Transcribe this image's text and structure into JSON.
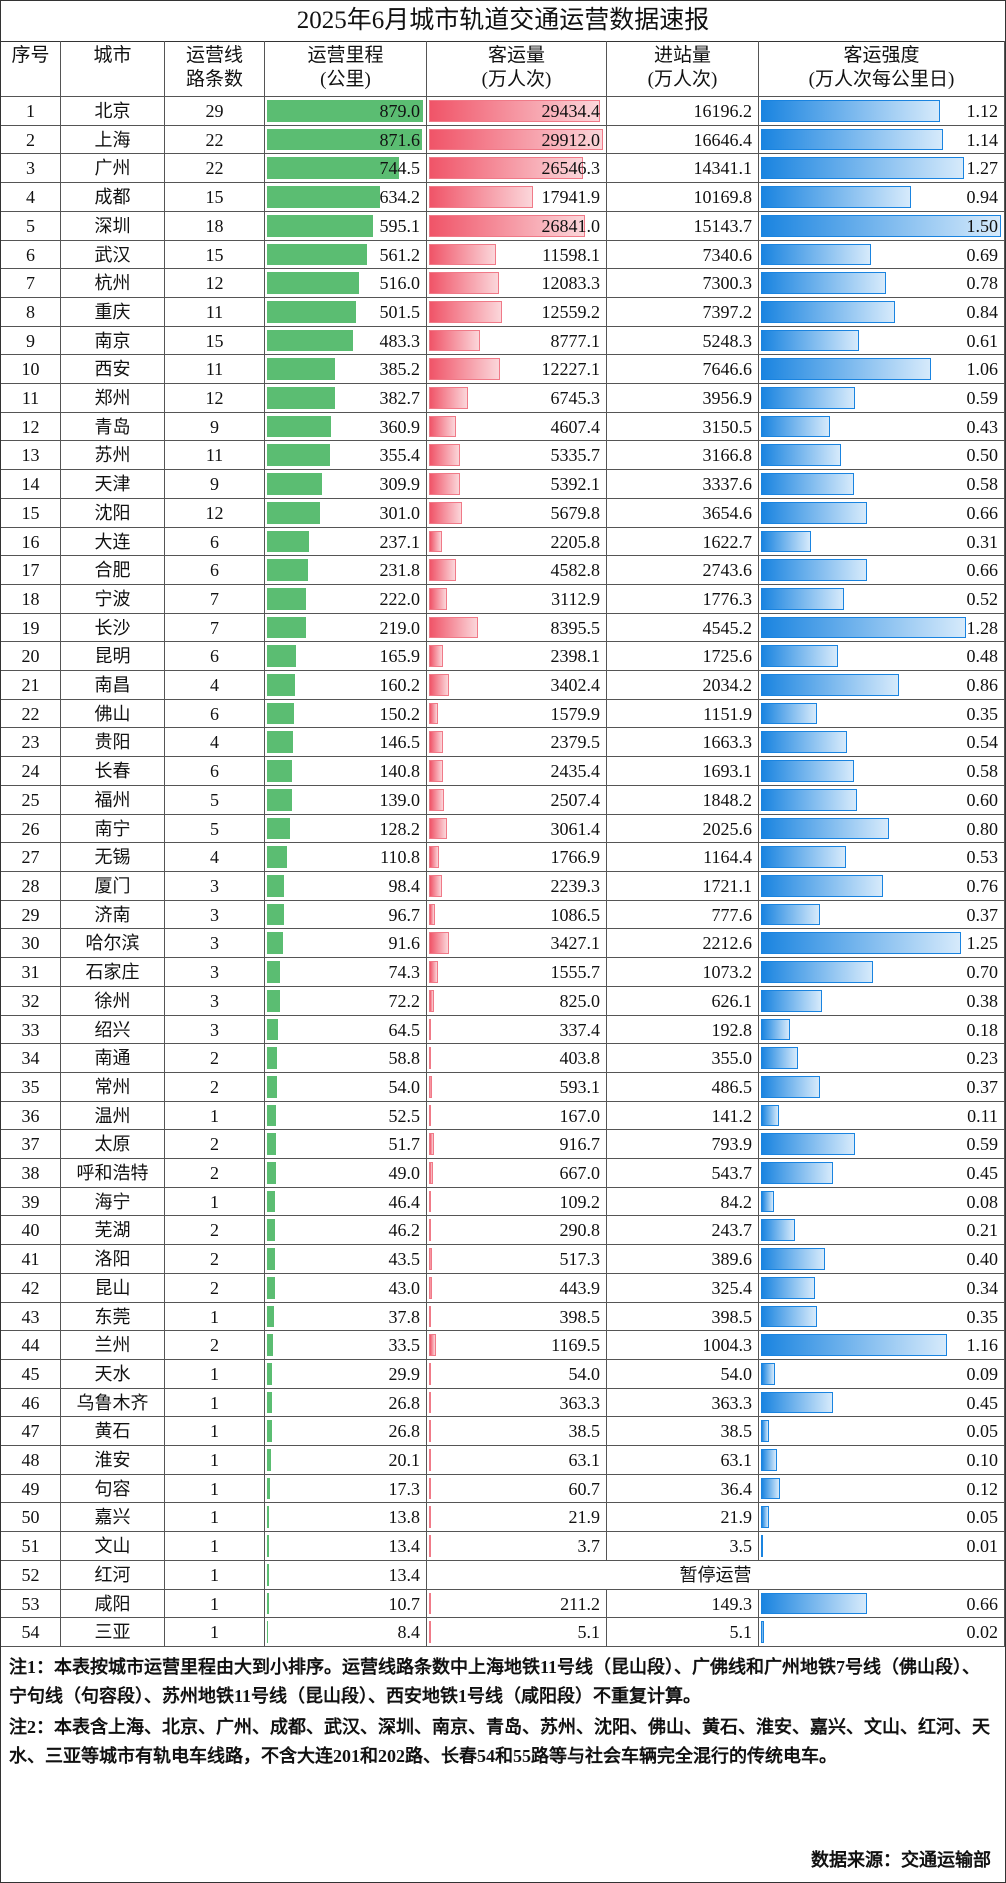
{
  "title": "2025年6月城市轨道交通运营数据速报",
  "table": {
    "headers": [
      "序号",
      "城市",
      "运营线\n路条数",
      "运营里程\n(公里)",
      "客运量\n(万人次)",
      "进站量\n(万人次)",
      "客运强度\n(万人次每公里日)"
    ],
    "rows": [
      [
        1,
        "北京",
        29,
        "879.0",
        "29434.4",
        "16196.2",
        "1.12"
      ],
      [
        2,
        "上海",
        22,
        "871.6",
        "29912.0",
        "16646.4",
        "1.14"
      ],
      [
        3,
        "广州",
        22,
        "744.5",
        "26546.3",
        "14341.1",
        "1.27"
      ],
      [
        4,
        "成都",
        15,
        "634.2",
        "17941.9",
        "10169.8",
        "0.94"
      ],
      [
        5,
        "深圳",
        18,
        "595.1",
        "26841.0",
        "15143.7",
        "1.50"
      ],
      [
        6,
        "武汉",
        15,
        "561.2",
        "11598.1",
        "7340.6",
        "0.69"
      ],
      [
        7,
        "杭州",
        12,
        "516.0",
        "12083.3",
        "7300.3",
        "0.78"
      ],
      [
        8,
        "重庆",
        11,
        "501.5",
        "12559.2",
        "7397.2",
        "0.84"
      ],
      [
        9,
        "南京",
        15,
        "483.3",
        "8777.1",
        "5248.3",
        "0.61"
      ],
      [
        10,
        "西安",
        11,
        "385.2",
        "12227.1",
        "7646.6",
        "1.06"
      ],
      [
        11,
        "郑州",
        12,
        "382.7",
        "6745.3",
        "3956.9",
        "0.59"
      ],
      [
        12,
        "青岛",
        9,
        "360.9",
        "4607.4",
        "3150.5",
        "0.43"
      ],
      [
        13,
        "苏州",
        11,
        "355.4",
        "5335.7",
        "3166.8",
        "0.50"
      ],
      [
        14,
        "天津",
        9,
        "309.9",
        "5392.1",
        "3337.6",
        "0.58"
      ],
      [
        15,
        "沈阳",
        12,
        "301.0",
        "5679.8",
        "3654.6",
        "0.66"
      ],
      [
        16,
        "大连",
        6,
        "237.1",
        "2205.8",
        "1622.7",
        "0.31"
      ],
      [
        17,
        "合肥",
        6,
        "231.8",
        "4582.8",
        "2743.6",
        "0.66"
      ],
      [
        18,
        "宁波",
        7,
        "222.0",
        "3112.9",
        "1776.3",
        "0.52"
      ],
      [
        19,
        "长沙",
        7,
        "219.0",
        "8395.5",
        "4545.2",
        "1.28"
      ],
      [
        20,
        "昆明",
        6,
        "165.9",
        "2398.1",
        "1725.6",
        "0.48"
      ],
      [
        21,
        "南昌",
        4,
        "160.2",
        "3402.4",
        "2034.2",
        "0.86"
      ],
      [
        22,
        "佛山",
        6,
        "150.2",
        "1579.9",
        "1151.9",
        "0.35"
      ],
      [
        23,
        "贵阳",
        4,
        "146.5",
        "2379.5",
        "1663.3",
        "0.54"
      ],
      [
        24,
        "长春",
        6,
        "140.8",
        "2435.4",
        "1693.1",
        "0.58"
      ],
      [
        25,
        "福州",
        5,
        "139.0",
        "2507.4",
        "1848.2",
        "0.60"
      ],
      [
        26,
        "南宁",
        5,
        "128.2",
        "3061.4",
        "2025.6",
        "0.80"
      ],
      [
        27,
        "无锡",
        4,
        "110.8",
        "1766.9",
        "1164.4",
        "0.53"
      ],
      [
        28,
        "厦门",
        3,
        "98.4",
        "2239.3",
        "1721.1",
        "0.76"
      ],
      [
        29,
        "济南",
        3,
        "96.7",
        "1086.5",
        "777.6",
        "0.37"
      ],
      [
        30,
        "哈尔滨",
        3,
        "91.6",
        "3427.1",
        "2212.6",
        "1.25"
      ],
      [
        31,
        "石家庄",
        3,
        "74.3",
        "1555.7",
        "1073.2",
        "0.70"
      ],
      [
        32,
        "徐州",
        3,
        "72.2",
        "825.0",
        "626.1",
        "0.38"
      ],
      [
        33,
        "绍兴",
        3,
        "64.5",
        "337.4",
        "192.8",
        "0.18"
      ],
      [
        34,
        "南通",
        2,
        "58.8",
        "403.8",
        "355.0",
        "0.23"
      ],
      [
        35,
        "常州",
        2,
        "54.0",
        "593.1",
        "486.5",
        "0.37"
      ],
      [
        36,
        "温州",
        1,
        "52.5",
        "167.0",
        "141.2",
        "0.11"
      ],
      [
        37,
        "太原",
        2,
        "51.7",
        "916.7",
        "793.9",
        "0.59"
      ],
      [
        38,
        "呼和浩特",
        2,
        "49.0",
        "667.0",
        "543.7",
        "0.45"
      ],
      [
        39,
        "海宁",
        1,
        "46.4",
        "109.2",
        "84.2",
        "0.08"
      ],
      [
        40,
        "芜湖",
        2,
        "46.2",
        "290.8",
        "243.7",
        "0.21"
      ],
      [
        41,
        "洛阳",
        2,
        "43.5",
        "517.3",
        "389.6",
        "0.40"
      ],
      [
        42,
        "昆山",
        2,
        "43.0",
        "443.9",
        "325.4",
        "0.34"
      ],
      [
        43,
        "东莞",
        1,
        "37.8",
        "398.5",
        "398.5",
        "0.35"
      ],
      [
        44,
        "兰州",
        2,
        "33.5",
        "1169.5",
        "1004.3",
        "1.16"
      ],
      [
        45,
        "天水",
        1,
        "29.9",
        "54.0",
        "54.0",
        "0.09"
      ],
      [
        46,
        "乌鲁木齐",
        1,
        "26.8",
        "363.3",
        "363.3",
        "0.45"
      ],
      [
        47,
        "黄石",
        1,
        "26.8",
        "38.5",
        "38.5",
        "0.05"
      ],
      [
        48,
        "淮安",
        1,
        "20.1",
        "63.1",
        "63.1",
        "0.10"
      ],
      [
        49,
        "句容",
        1,
        "17.3",
        "60.7",
        "36.4",
        "0.12"
      ],
      [
        50,
        "嘉兴",
        1,
        "13.8",
        "21.9",
        "21.9",
        "0.05"
      ],
      [
        51,
        "文山",
        1,
        "13.4",
        "3.7",
        "3.5",
        "0.01"
      ],
      [
        52,
        "红河",
        1,
        "13.4",
        "暂停运营"
      ],
      [
        53,
        "咸阳",
        1,
        "10.7",
        "211.2",
        "149.3",
        "0.66"
      ],
      [
        54,
        "三亚",
        1,
        "8.4",
        "5.1",
        "5.1",
        "0.02"
      ]
    ]
  },
  "notes": [
    "注1：本表按城市运营里程由大到小排序。运营线路条数中上海地铁11号线（昆山段）、广佛线和广州地铁7号线（佛山段）、宁句线（句容段）、苏州地铁11号线（昆山段）、西安地铁1号线（咸阳段）不重复计算。",
    "注2：本表含上海、北京、广州、成都、武汉、深圳、南京、青岛、苏州、沈阳、佛山、黄石、淮安、嘉兴、文山、红河、天水、三亚等城市有轨电车线路，不含大连201和202路、长春54和55路等与社会车辆完全混行的传统电车。"
  ],
  "source": "数据来源：交通运输部"
}
